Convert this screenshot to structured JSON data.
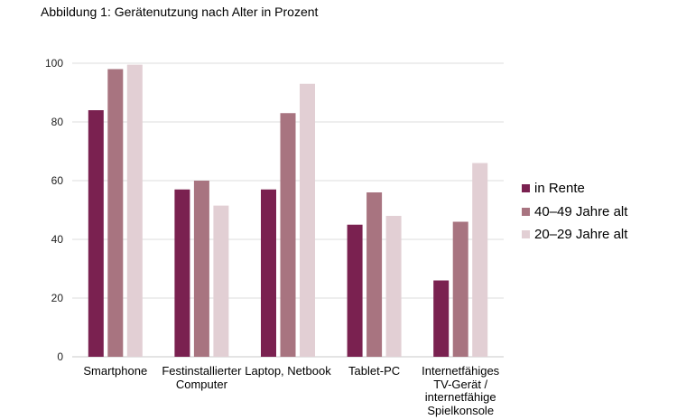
{
  "figure": {
    "title": "Abbildung 1: Gerätenutzung nach Alter in Prozent"
  },
  "chart_data": {
    "type": "bar",
    "title": "Abbildung 1: Gerätenutzung nach Alter in Prozent",
    "xlabel": "",
    "ylabel": "",
    "ylim": [
      0,
      100
    ],
    "yticks": [
      "0",
      "20",
      "40",
      "60",
      "80",
      "100"
    ],
    "grid": true,
    "legend_position": "right",
    "categories": [
      [
        "Smartphone"
      ],
      [
        "Festinstallierter",
        "Computer"
      ],
      [
        "Laptop, Netbook"
      ],
      [
        "Tablet-PC"
      ],
      [
        "Internetfähiges",
        "TV-Gerät /",
        "internetfähige",
        "Spielkonsole"
      ]
    ],
    "series": [
      {
        "name": "in Rente",
        "color": "#7a2150",
        "values": [
          84,
          57,
          57,
          45,
          26
        ]
      },
      {
        "name": "40–49 Jahre alt",
        "color": "#a87480",
        "values": [
          98,
          60,
          83,
          56,
          46
        ]
      },
      {
        "name": "20–29 Jahre alt",
        "color": "#e2cfd4",
        "values": [
          99.5,
          51.5,
          93,
          48,
          66
        ]
      }
    ]
  }
}
